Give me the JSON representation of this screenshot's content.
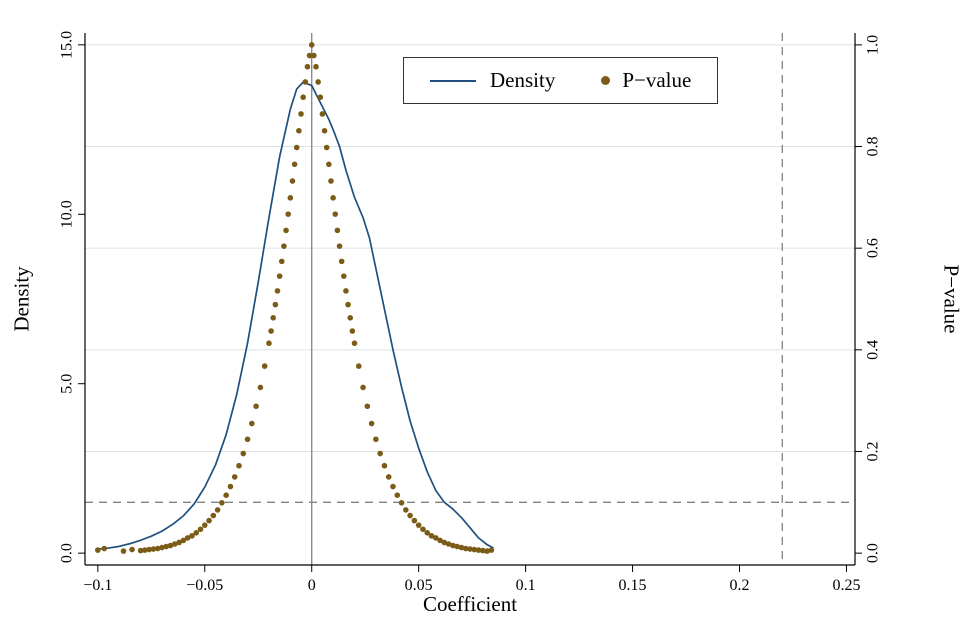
{
  "figure": {
    "legend": {
      "density_label": "Density",
      "pvalue_label": "P−value"
    }
  },
  "chart_data": {
    "type": "line+scatter",
    "title": "",
    "xlabel": "Coefficient",
    "ylabel_left": "Density",
    "ylabel_right": "P−value",
    "xlim": [
      -0.106,
      0.254
    ],
    "ylim_left": [
      0,
      15
    ],
    "ylim_right": [
      0,
      1
    ],
    "y_domain": [
      -0.35,
      15.35
    ],
    "x_ticks": [
      -0.1,
      -0.05,
      0,
      0.05,
      0.1,
      0.15,
      0.2,
      0.25
    ],
    "x_tick_labels": [
      "−0.1",
      "−0.05",
      "0",
      "0.05",
      "0.1",
      "0.15",
      "0.2",
      "0.25"
    ],
    "y_left_ticks": [
      0,
      5,
      10,
      15
    ],
    "y_left_tick_labels": [
      "0.0",
      "5.0",
      "10.0",
      "15.0"
    ],
    "y_right_ticks": [
      0,
      0.2,
      0.4,
      0.6,
      0.8,
      1.0
    ],
    "y_right_tick_labels": [
      "0.0",
      "0.2",
      "0.4",
      "0.6",
      "0.8",
      "1.0"
    ],
    "grid_values_right": [
      0.2,
      0.4,
      0.6,
      0.8,
      1.0
    ],
    "legend_position": "top-center",
    "ref_lines": {
      "vline_solid_x": 0,
      "vline_dashed_x": 0.22,
      "hline_dashed_p": 0.1
    },
    "colors": {
      "density": "#1f5080",
      "pvalue": "#7a5c16",
      "grid": "#dbe2ea",
      "axis": "#000000",
      "refline": "#838383"
    },
    "series": {
      "density": {
        "name": "Density",
        "x": [
          -0.1,
          -0.095,
          -0.09,
          -0.085,
          -0.08,
          -0.075,
          -0.07,
          -0.065,
          -0.06,
          -0.055,
          -0.05,
          -0.045,
          -0.04,
          -0.035,
          -0.03,
          -0.025,
          -0.02,
          -0.015,
          -0.01,
          -0.007,
          -0.004,
          0.0,
          0.004,
          0.008,
          0.01,
          0.013,
          0.016,
          0.02,
          0.024,
          0.027,
          0.03,
          0.034,
          0.038,
          0.042,
          0.046,
          0.05,
          0.054,
          0.058,
          0.062,
          0.066,
          0.07,
          0.074,
          0.078,
          0.082,
          0.085
        ],
        "y": [
          0.12,
          0.15,
          0.2,
          0.28,
          0.38,
          0.5,
          0.65,
          0.85,
          1.1,
          1.45,
          1.95,
          2.6,
          3.5,
          4.7,
          6.2,
          8.0,
          9.9,
          11.7,
          13.1,
          13.7,
          13.9,
          13.8,
          13.3,
          12.8,
          12.5,
          12.0,
          11.3,
          10.5,
          9.9,
          9.3,
          8.4,
          7.2,
          6.0,
          4.9,
          3.9,
          3.1,
          2.4,
          1.85,
          1.5,
          1.3,
          1.05,
          0.75,
          0.45,
          0.25,
          0.15
        ]
      },
      "pvalue": {
        "name": "P−value",
        "points": [
          [
            -0.1,
            0.006
          ],
          [
            -0.097,
            0.009
          ],
          [
            -0.088,
            0.004
          ],
          [
            -0.084,
            0.007
          ],
          [
            -0.08,
            0.005
          ],
          [
            -0.078,
            0.006
          ],
          [
            -0.076,
            0.007
          ],
          [
            -0.074,
            0.008
          ],
          [
            -0.072,
            0.009
          ],
          [
            -0.07,
            0.011
          ],
          [
            -0.068,
            0.013
          ],
          [
            -0.066,
            0.015
          ],
          [
            -0.064,
            0.018
          ],
          [
            -0.062,
            0.021
          ],
          [
            -0.06,
            0.025
          ],
          [
            -0.058,
            0.03
          ],
          [
            -0.056,
            0.034
          ],
          [
            -0.054,
            0.04
          ],
          [
            -0.052,
            0.047
          ],
          [
            -0.05,
            0.055
          ],
          [
            -0.048,
            0.064
          ],
          [
            -0.046,
            0.074
          ],
          [
            -0.044,
            0.085
          ],
          [
            -0.042,
            0.099
          ],
          [
            -0.04,
            0.114
          ],
          [
            -0.038,
            0.131
          ],
          [
            -0.036,
            0.15
          ],
          [
            -0.034,
            0.172
          ],
          [
            -0.032,
            0.196
          ],
          [
            -0.03,
            0.224
          ],
          [
            -0.028,
            0.255
          ],
          [
            -0.026,
            0.289
          ],
          [
            -0.024,
            0.326
          ],
          [
            -0.022,
            0.368
          ],
          [
            -0.02,
            0.413
          ],
          [
            -0.019,
            0.437
          ],
          [
            -0.018,
            0.463
          ],
          [
            -0.017,
            0.489
          ],
          [
            -0.016,
            0.516
          ],
          [
            -0.015,
            0.545
          ],
          [
            -0.014,
            0.574
          ],
          [
            -0.013,
            0.604
          ],
          [
            -0.012,
            0.635
          ],
          [
            -0.011,
            0.667
          ],
          [
            -0.01,
            0.699
          ],
          [
            -0.009,
            0.732
          ],
          [
            -0.008,
            0.765
          ],
          [
            -0.007,
            0.798
          ],
          [
            -0.006,
            0.831
          ],
          [
            -0.005,
            0.864
          ],
          [
            -0.004,
            0.897
          ],
          [
            -0.003,
            0.927
          ],
          [
            -0.002,
            0.957
          ],
          [
            -0.001,
            0.979
          ],
          [
            0.0,
            1.0
          ],
          [
            0.001,
            0.979
          ],
          [
            0.002,
            0.957
          ],
          [
            0.003,
            0.927
          ],
          [
            0.004,
            0.897
          ],
          [
            0.005,
            0.864
          ],
          [
            0.006,
            0.831
          ],
          [
            0.007,
            0.798
          ],
          [
            0.008,
            0.765
          ],
          [
            0.009,
            0.732
          ],
          [
            0.01,
            0.699
          ],
          [
            0.011,
            0.667
          ],
          [
            0.012,
            0.635
          ],
          [
            0.013,
            0.604
          ],
          [
            0.014,
            0.574
          ],
          [
            0.015,
            0.545
          ],
          [
            0.016,
            0.516
          ],
          [
            0.017,
            0.489
          ],
          [
            0.018,
            0.463
          ],
          [
            0.019,
            0.437
          ],
          [
            0.02,
            0.413
          ],
          [
            0.022,
            0.368
          ],
          [
            0.024,
            0.326
          ],
          [
            0.026,
            0.289
          ],
          [
            0.028,
            0.255
          ],
          [
            0.03,
            0.224
          ],
          [
            0.032,
            0.196
          ],
          [
            0.034,
            0.172
          ],
          [
            0.036,
            0.15
          ],
          [
            0.038,
            0.131
          ],
          [
            0.04,
            0.114
          ],
          [
            0.042,
            0.099
          ],
          [
            0.044,
            0.085
          ],
          [
            0.046,
            0.074
          ],
          [
            0.048,
            0.064
          ],
          [
            0.05,
            0.055
          ],
          [
            0.052,
            0.047
          ],
          [
            0.054,
            0.04
          ],
          [
            0.056,
            0.034
          ],
          [
            0.058,
            0.03
          ],
          [
            0.06,
            0.025
          ],
          [
            0.062,
            0.021
          ],
          [
            0.064,
            0.018
          ],
          [
            0.066,
            0.015
          ],
          [
            0.068,
            0.013
          ],
          [
            0.07,
            0.011
          ],
          [
            0.072,
            0.009
          ],
          [
            0.074,
            0.008
          ],
          [
            0.076,
            0.007
          ],
          [
            0.078,
            0.006
          ],
          [
            0.08,
            0.005
          ],
          [
            0.082,
            0.004
          ],
          [
            0.084,
            0.006
          ]
        ]
      }
    }
  }
}
